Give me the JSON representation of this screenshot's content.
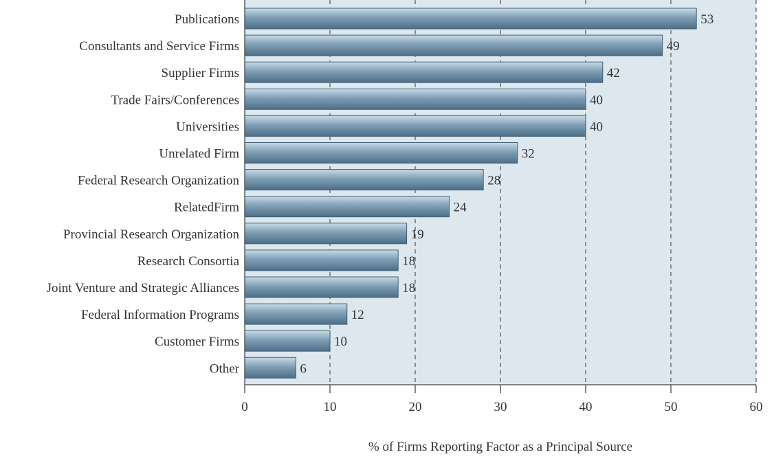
{
  "chart_data": {
    "type": "bar",
    "orientation": "horizontal",
    "categories": [
      "Publications",
      "Consultants and Service Firms",
      "Supplier Firms",
      "Trade Fairs/Conferences",
      "Universities",
      "Unrelated Firm",
      "Federal Research Organization",
      "RelatedFirm",
      "Provincial Research Organization",
      "Research Consortia",
      "Joint Venture and Strategic Alliances",
      "Federal Information Programs",
      "Customer Firms",
      "Other"
    ],
    "values": [
      53,
      49,
      42,
      40,
      40,
      32,
      28,
      24,
      19,
      18,
      18,
      12,
      10,
      6
    ],
    "data_labels": [
      "53",
      "49",
      "42",
      "40",
      "40",
      "32",
      "28",
      "24",
      "19",
      "18",
      "18",
      "12",
      "10",
      "6"
    ],
    "xlabel": "% of Firms Reporting Factor as a Principal Source",
    "xlim": [
      0,
      60
    ],
    "xticks": [
      0,
      10,
      20,
      30,
      40,
      50,
      60
    ],
    "grid": "vertical dashed",
    "colors": {
      "plot_background": "#dde7ee",
      "bar_light": "#c9dbe6",
      "bar_mid": "#7f9fb6",
      "bar_dark": "#4d6e86",
      "grid": "#555555",
      "text": "#333333"
    }
  }
}
